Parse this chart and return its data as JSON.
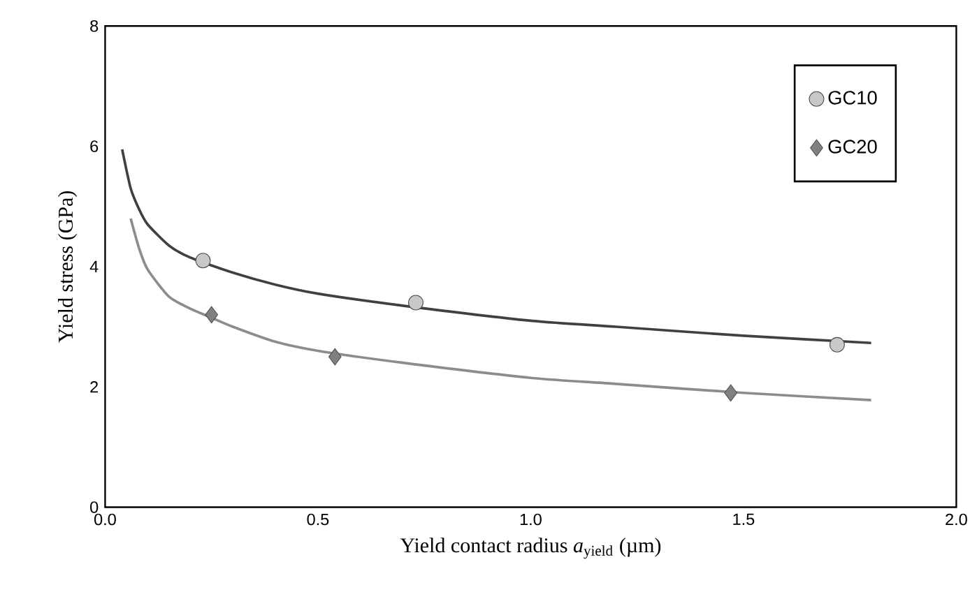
{
  "chart_data": {
    "type": "scatter",
    "xlabel": "Yield contact radius *a*$_{yield}$  (µm)",
    "ylabel": "Yield stress  (GPa)",
    "xlim": [
      0,
      2
    ],
    "ylim": [
      0,
      8
    ],
    "xticks": [
      {
        "value": 0,
        "label": "0.0"
      },
      {
        "value": 0.5,
        "label": "0.5"
      },
      {
        "value": 1,
        "label": "1.0"
      },
      {
        "value": 1.5,
        "label": "1.5"
      },
      {
        "value": 2,
        "label": "2.0"
      }
    ],
    "yticks": [
      0,
      2,
      4,
      6,
      8
    ],
    "legend": "top right",
    "grid": false,
    "series": [
      {
        "name": "GC10",
        "marker": "circle",
        "color": "#c8c8c8",
        "x": [
          0.23,
          0.73,
          1.72
        ],
        "values": [
          4.1,
          3.4,
          2.7
        ]
      },
      {
        "name": "GC20",
        "marker": "diamond",
        "color": "#808080",
        "x": [
          0.25,
          0.54,
          1.47
        ],
        "values": [
          3.2,
          2.5,
          1.9
        ]
      },
      {
        "type": "line",
        "color": "#404040",
        "x": [
          0.04,
          0.06,
          0.08,
          0.1,
          0.15,
          0.2,
          0.3,
          0.4,
          0.5,
          0.7,
          1.0,
          1.2,
          1.5,
          1.8
        ],
        "values": [
          5.95,
          5.3,
          4.95,
          4.7,
          4.35,
          4.15,
          3.9,
          3.7,
          3.55,
          3.35,
          3.1,
          3.0,
          2.85,
          2.73
        ]
      },
      {
        "type": "line",
        "color": "#8c8c8c",
        "x": [
          0.06,
          0.08,
          0.1,
          0.15,
          0.2,
          0.25,
          0.3,
          0.4,
          0.5,
          0.7,
          1.0,
          1.2,
          1.5,
          1.8
        ],
        "values": [
          4.8,
          4.3,
          3.95,
          3.5,
          3.3,
          3.15,
          3.0,
          2.75,
          2.6,
          2.4,
          2.15,
          2.05,
          1.9,
          1.78
        ]
      }
    ]
  }
}
